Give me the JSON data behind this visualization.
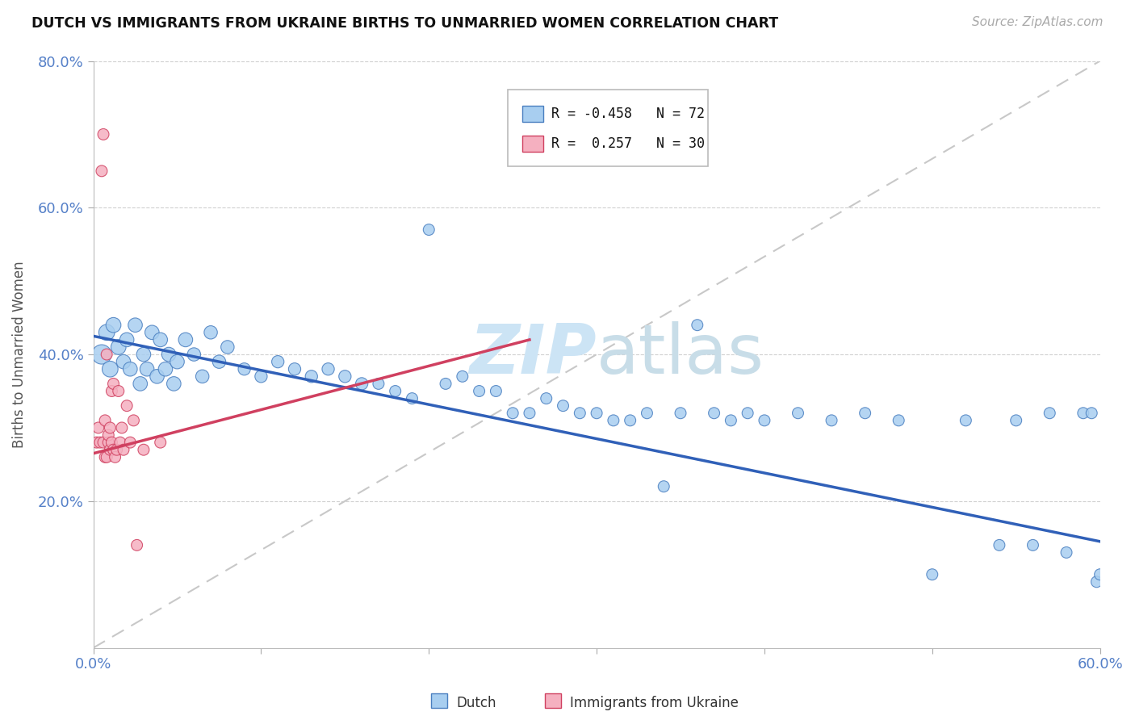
{
  "title": "DUTCH VS IMMIGRANTS FROM UKRAINE BIRTHS TO UNMARRIED WOMEN CORRELATION CHART",
  "source": "Source: ZipAtlas.com",
  "ylabel": "Births to Unmarried Women",
  "dutch_color": "#a8cef0",
  "dutch_edge_color": "#4a7fc0",
  "ukraine_color": "#f5b0c0",
  "ukraine_edge_color": "#d04060",
  "dutch_line_color": "#3060b8",
  "ukraine_line_color": "#d04060",
  "ref_line_color": "#c8c8c8",
  "watermark_color": "#cce4f5",
  "title_color": "#111111",
  "source_color": "#aaaaaa",
  "axis_tick_color": "#5580c8",
  "xlim": [
    0.0,
    0.6
  ],
  "ylim": [
    0.0,
    0.8
  ],
  "xticks": [
    0.0,
    0.6
  ],
  "xticklabels": [
    "0.0%",
    "60.0%"
  ],
  "yticks": [
    0.2,
    0.4,
    0.6,
    0.8
  ],
  "yticklabels": [
    "20.0%",
    "40.0%",
    "60.0%",
    "80.0%"
  ],
  "legend_dutch_r": "-0.458",
  "legend_dutch_n": "72",
  "legend_ukraine_r": "0.257",
  "legend_ukraine_n": "30",
  "dutch_x": [
    0.005,
    0.008,
    0.01,
    0.012,
    0.015,
    0.018,
    0.02,
    0.022,
    0.025,
    0.028,
    0.03,
    0.032,
    0.035,
    0.038,
    0.04,
    0.043,
    0.045,
    0.048,
    0.05,
    0.055,
    0.06,
    0.065,
    0.07,
    0.075,
    0.08,
    0.09,
    0.1,
    0.11,
    0.12,
    0.13,
    0.14,
    0.15,
    0.16,
    0.17,
    0.18,
    0.19,
    0.2,
    0.21,
    0.22,
    0.23,
    0.24,
    0.25,
    0.26,
    0.27,
    0.28,
    0.29,
    0.3,
    0.31,
    0.32,
    0.33,
    0.34,
    0.35,
    0.36,
    0.37,
    0.38,
    0.39,
    0.4,
    0.42,
    0.44,
    0.46,
    0.48,
    0.5,
    0.52,
    0.54,
    0.55,
    0.56,
    0.57,
    0.58,
    0.59,
    0.595,
    0.598,
    0.6
  ],
  "dutch_y": [
    0.4,
    0.43,
    0.38,
    0.44,
    0.41,
    0.39,
    0.42,
    0.38,
    0.44,
    0.36,
    0.4,
    0.38,
    0.43,
    0.37,
    0.42,
    0.38,
    0.4,
    0.36,
    0.39,
    0.42,
    0.4,
    0.37,
    0.43,
    0.39,
    0.41,
    0.38,
    0.37,
    0.39,
    0.38,
    0.37,
    0.38,
    0.37,
    0.36,
    0.36,
    0.35,
    0.34,
    0.57,
    0.36,
    0.37,
    0.35,
    0.35,
    0.32,
    0.32,
    0.34,
    0.33,
    0.32,
    0.32,
    0.31,
    0.31,
    0.32,
    0.22,
    0.32,
    0.44,
    0.32,
    0.31,
    0.32,
    0.31,
    0.32,
    0.31,
    0.32,
    0.31,
    0.1,
    0.31,
    0.14,
    0.31,
    0.14,
    0.32,
    0.13,
    0.32,
    0.32,
    0.09,
    0.1
  ],
  "dutch_sizes": [
    300,
    200,
    200,
    180,
    180,
    160,
    160,
    160,
    160,
    160,
    160,
    160,
    160,
    160,
    160,
    160,
    160,
    160,
    160,
    160,
    140,
    140,
    140,
    140,
    140,
    120,
    120,
    120,
    120,
    120,
    120,
    120,
    120,
    100,
    100,
    100,
    100,
    100,
    100,
    100,
    100,
    100,
    100,
    100,
    100,
    100,
    100,
    100,
    100,
    100,
    100,
    100,
    100,
    100,
    100,
    100,
    100,
    100,
    100,
    100,
    100,
    100,
    100,
    100,
    100,
    100,
    100,
    100,
    100,
    100,
    100,
    100
  ],
  "ukraine_x": [
    0.002,
    0.003,
    0.004,
    0.005,
    0.006,
    0.006,
    0.007,
    0.007,
    0.008,
    0.008,
    0.009,
    0.009,
    0.01,
    0.01,
    0.011,
    0.011,
    0.012,
    0.012,
    0.013,
    0.014,
    0.015,
    0.016,
    0.017,
    0.018,
    0.02,
    0.022,
    0.024,
    0.026,
    0.03,
    0.04
  ],
  "ukraine_y": [
    0.28,
    0.3,
    0.28,
    0.65,
    0.7,
    0.28,
    0.26,
    0.31,
    0.26,
    0.4,
    0.28,
    0.29,
    0.27,
    0.3,
    0.28,
    0.35,
    0.27,
    0.36,
    0.26,
    0.27,
    0.35,
    0.28,
    0.3,
    0.27,
    0.33,
    0.28,
    0.31,
    0.14,
    0.27,
    0.28
  ],
  "ukraine_sizes": [
    100,
    100,
    100,
    100,
    100,
    100,
    100,
    100,
    100,
    100,
    100,
    100,
    100,
    100,
    100,
    100,
    100,
    100,
    100,
    100,
    100,
    100,
    100,
    100,
    100,
    100,
    100,
    100,
    100,
    100
  ],
  "dutch_trend_x": [
    0.0,
    0.6
  ],
  "dutch_trend_y_start": 0.425,
  "dutch_trend_y_end": 0.145,
  "ukraine_trend_x": [
    0.0,
    0.26
  ],
  "ukraine_trend_y_start": 0.265,
  "ukraine_trend_y_end": 0.42
}
